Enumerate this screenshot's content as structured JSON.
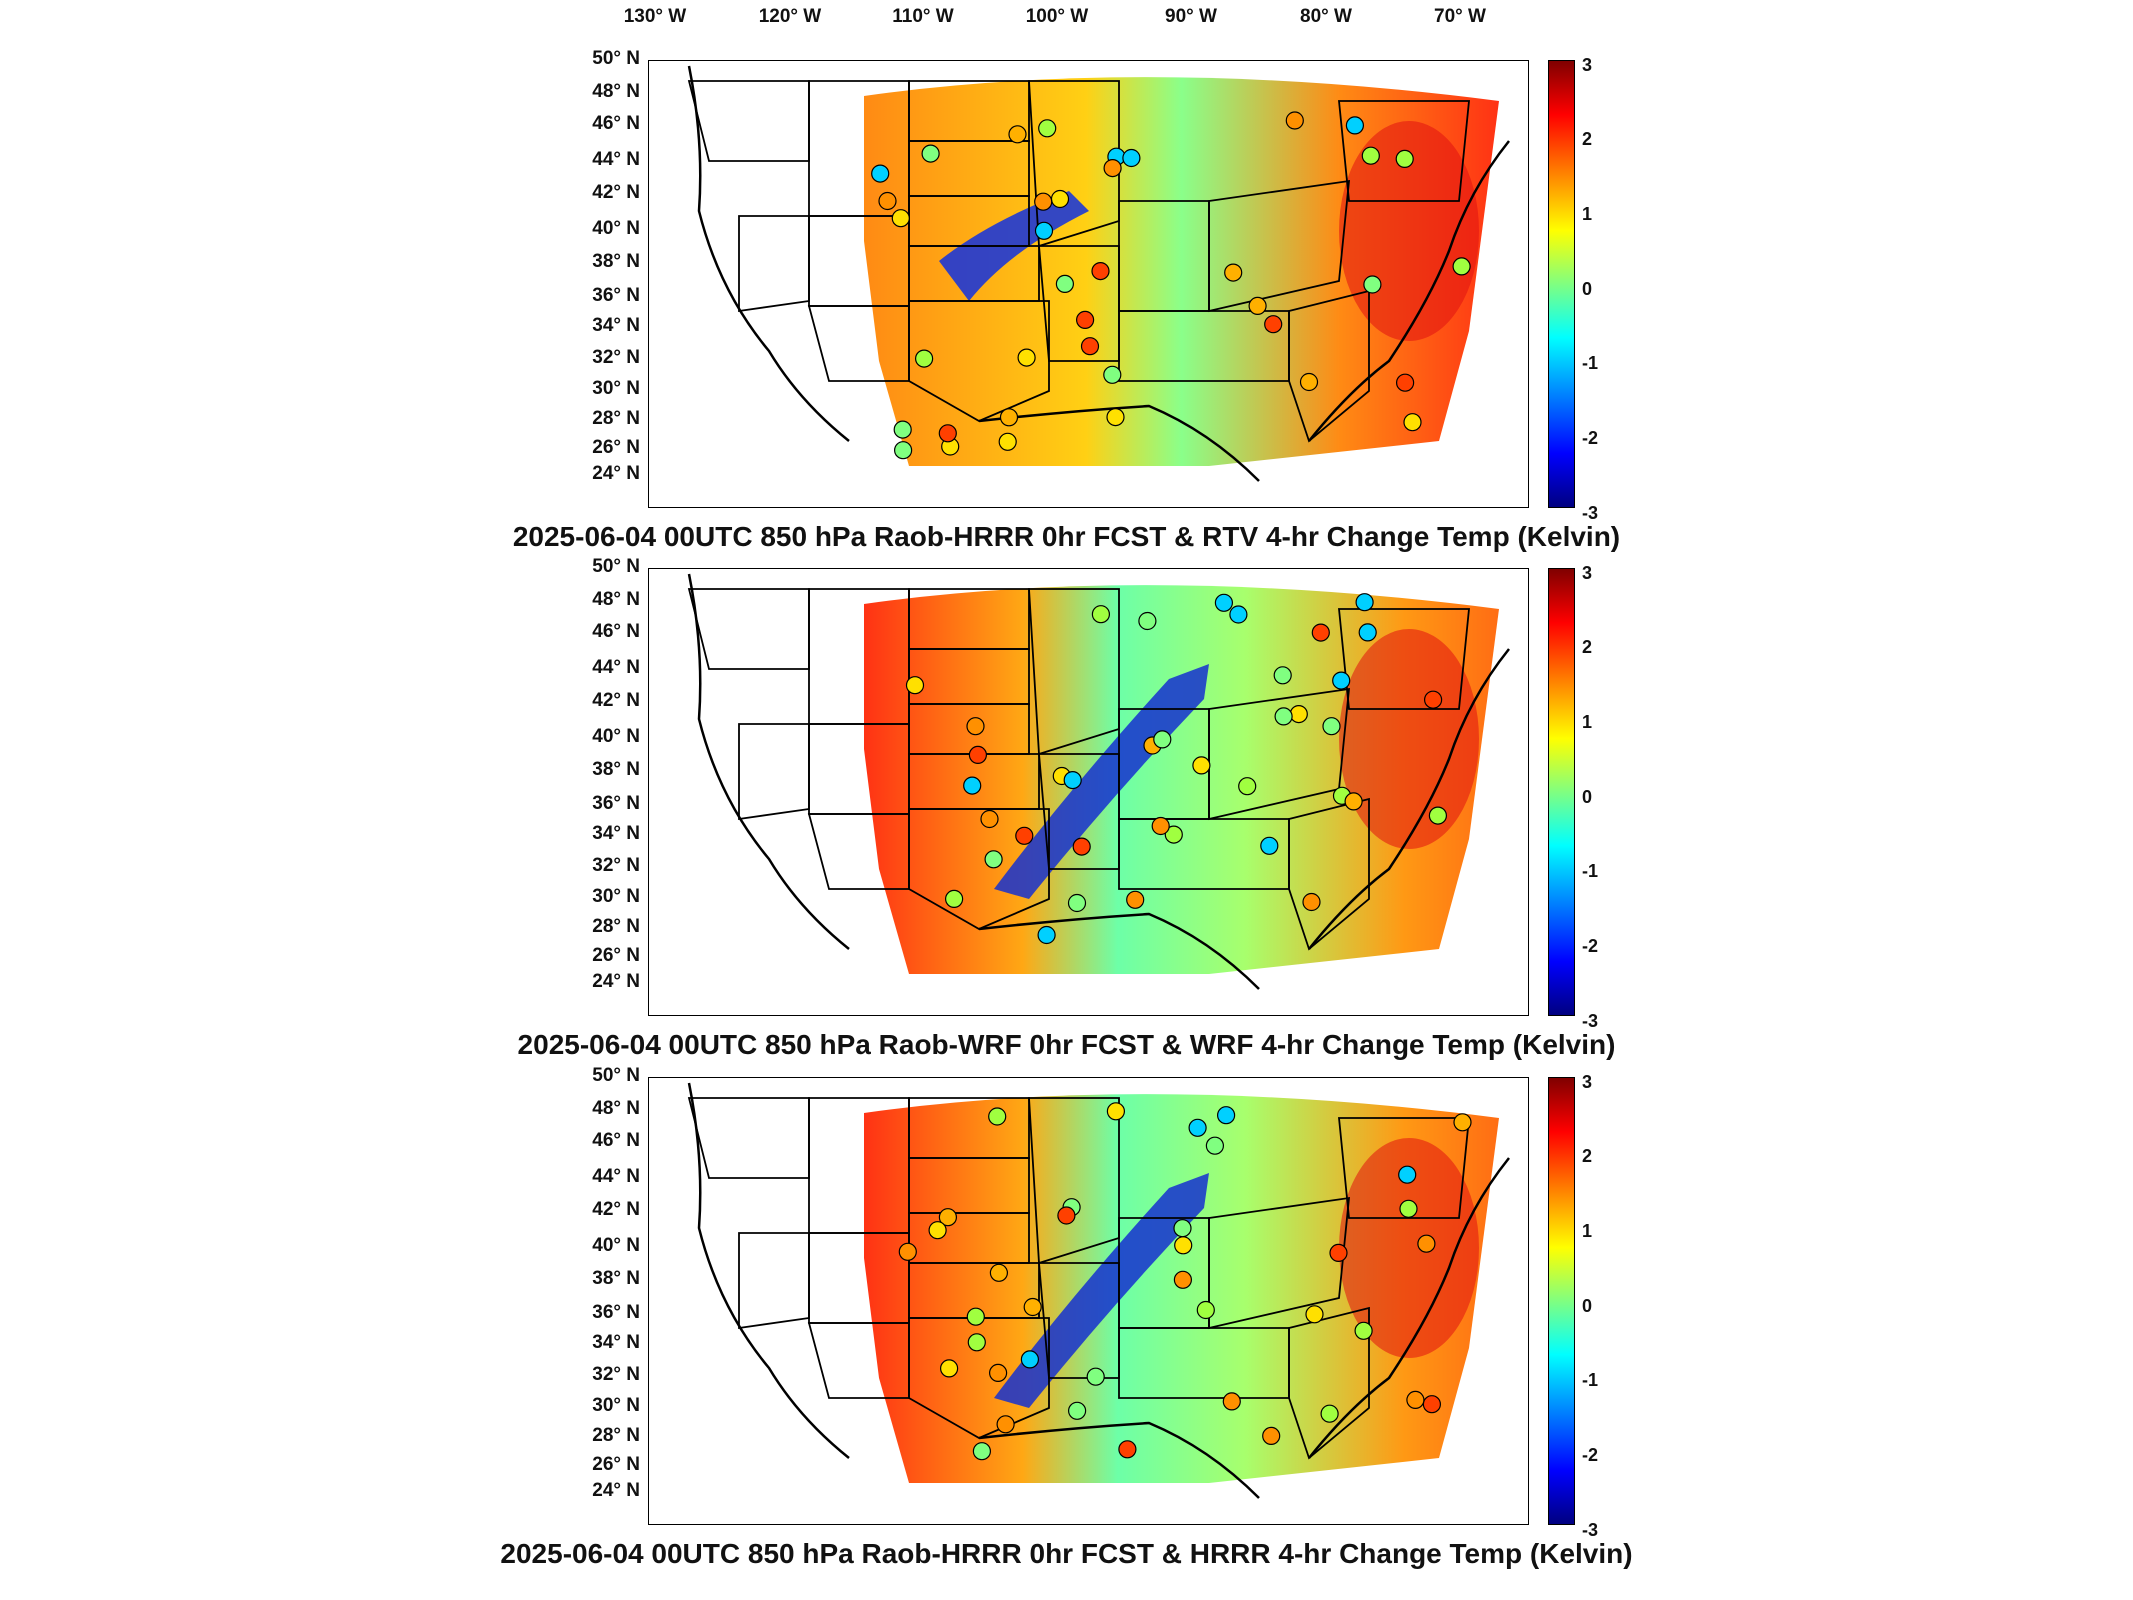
{
  "lon_labels": [
    "130° W",
    "120° W",
    "110° W",
    "100° W",
    "90° W",
    "80° W",
    "70° W"
  ],
  "lat_labels": [
    "50° N",
    "48° N",
    "46° N",
    "44° N",
    "42° N",
    "40° N",
    "38° N",
    "36° N",
    "34° N",
    "32° N",
    "30° N",
    "28° N",
    "26° N",
    "24° N"
  ],
  "colorbar_ticks": [
    "3",
    "2",
    "1",
    "0",
    "-1",
    "-2",
    "-3"
  ],
  "colorbar_colors": [
    "#800000",
    "#ff0000",
    "#ff8000",
    "#ffff00",
    "#80ff80",
    "#00ffff",
    "#0080ff",
    "#0000ff",
    "#000080"
  ],
  "panels": [
    {
      "title": "2025-06-04 00UTC 850 hPa Raob-HRRR 0hr FCST & RTV 4-hr Change Temp (Kelvin)"
    },
    {
      "title": "2025-06-04 00UTC 850 hPa Raob-WRF 0hr FCST & WRF 4-hr Change Temp (Kelvin)"
    },
    {
      "title": "2025-06-04 00UTC 850 hPa Raob-HRRR 0hr FCST & HRRR 4-hr Change Temp (Kelvin)"
    }
  ]
}
